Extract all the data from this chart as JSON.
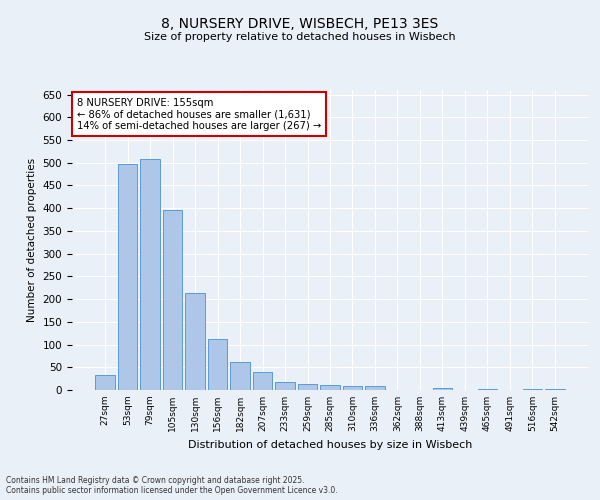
{
  "title": "8, NURSERY DRIVE, WISBECH, PE13 3ES",
  "subtitle": "Size of property relative to detached houses in Wisbech",
  "xlabel": "Distribution of detached houses by size in Wisbech",
  "ylabel": "Number of detached properties",
  "categories": [
    "27sqm",
    "53sqm",
    "79sqm",
    "105sqm",
    "130sqm",
    "156sqm",
    "182sqm",
    "207sqm",
    "233sqm",
    "259sqm",
    "285sqm",
    "310sqm",
    "336sqm",
    "362sqm",
    "388sqm",
    "413sqm",
    "439sqm",
    "465sqm",
    "491sqm",
    "516sqm",
    "542sqm"
  ],
  "values": [
    33,
    498,
    508,
    395,
    213,
    112,
    61,
    39,
    18,
    13,
    10,
    9,
    8,
    0,
    0,
    5,
    0,
    2,
    0,
    2,
    3
  ],
  "bar_color": "#aec6e8",
  "bar_edge_color": "#5b9bd5",
  "annotation_text": "8 NURSERY DRIVE: 155sqm\n← 86% of detached houses are smaller (1,631)\n14% of semi-detached houses are larger (267) →",
  "annotation_box_color": "#ffffff",
  "annotation_box_edge": "#cc0000",
  "ylim": [
    0,
    660
  ],
  "yticks": [
    0,
    50,
    100,
    150,
    200,
    250,
    300,
    350,
    400,
    450,
    500,
    550,
    600,
    650
  ],
  "background_color": "#eaf0f8",
  "grid_color": "#ffffff",
  "footer_line1": "Contains HM Land Registry data © Crown copyright and database right 2025.",
  "footer_line2": "Contains public sector information licensed under the Open Government Licence v3.0."
}
